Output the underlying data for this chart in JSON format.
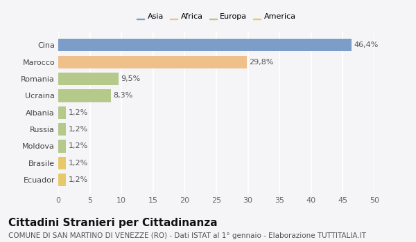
{
  "categories": [
    "Cina",
    "Marocco",
    "Romania",
    "Ucraina",
    "Albania",
    "Russia",
    "Moldova",
    "Brasile",
    "Ecuador"
  ],
  "values": [
    46.4,
    29.8,
    9.5,
    8.3,
    1.2,
    1.2,
    1.2,
    1.2,
    1.2
  ],
  "labels": [
    "46,4%",
    "29,8%",
    "9,5%",
    "8,3%",
    "1,2%",
    "1,2%",
    "1,2%",
    "1,2%",
    "1,2%"
  ],
  "colors": [
    "#7b9dc8",
    "#f0c08a",
    "#b5c98a",
    "#b5c98a",
    "#b5c98a",
    "#b5c98a",
    "#b5c98a",
    "#e8c96a",
    "#e8c96a"
  ],
  "legend_labels": [
    "Asia",
    "Africa",
    "Europa",
    "America"
  ],
  "legend_colors": [
    "#7b9dc8",
    "#f0c08a",
    "#b5c98a",
    "#e8c96a"
  ],
  "xlim": [
    0,
    50
  ],
  "xticks": [
    0,
    5,
    10,
    15,
    20,
    25,
    30,
    35,
    40,
    45,
    50
  ],
  "title": "Cittadini Stranieri per Cittadinanza",
  "subtitle": "COMUNE DI SAN MARTINO DI VENEZZE (RO) - Dati ISTAT al 1° gennaio - Elaborazione TUTTITALIA.IT",
  "background_color": "#f5f5f8",
  "plot_bg_color": "#f5f5f8",
  "grid_color": "#ffffff",
  "bar_height": 0.75,
  "label_fontsize": 8,
  "tick_fontsize": 8,
  "title_fontsize": 11,
  "subtitle_fontsize": 7.5
}
